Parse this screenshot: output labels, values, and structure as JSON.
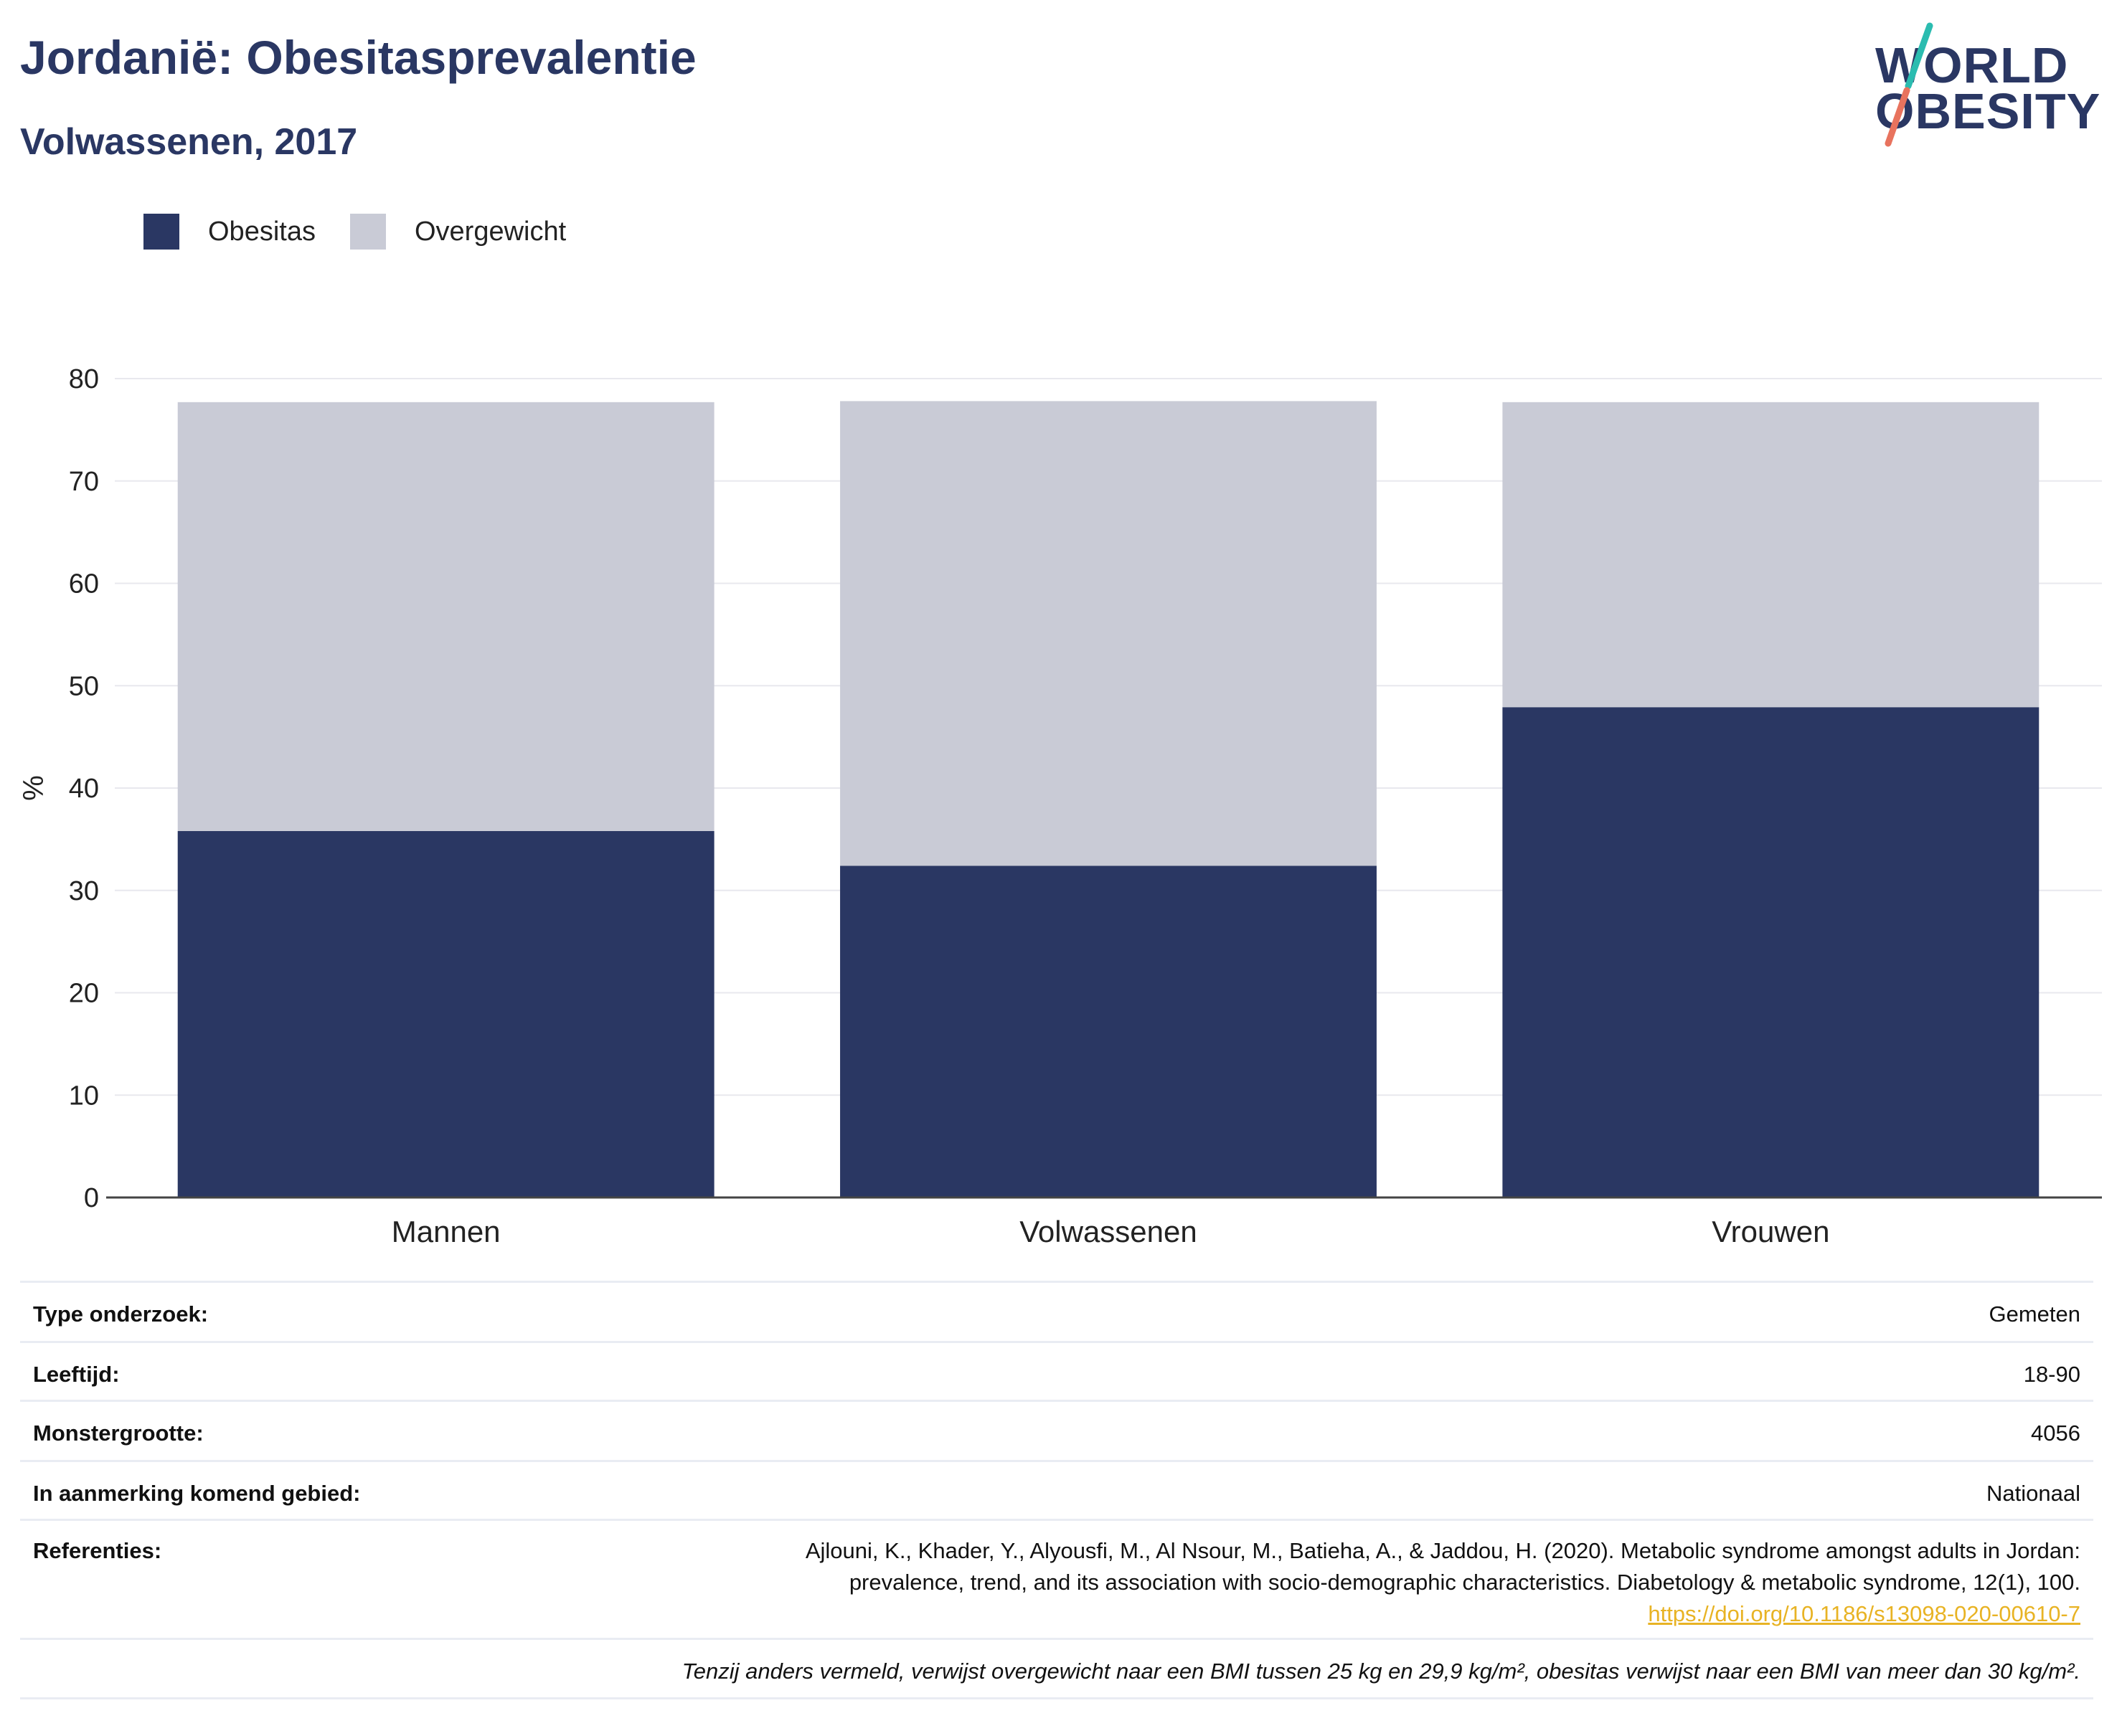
{
  "header": {
    "title": "Jordanië: Obesitasprevalentie",
    "subtitle": "Volwassenen, 2017"
  },
  "logo": {
    "line1": "WORLD",
    "line2": "OBESITY"
  },
  "legend": [
    {
      "label": "Obesitas",
      "color": "#2a3763"
    },
    {
      "label": "Overgewicht",
      "color": "#c9cbd6"
    }
  ],
  "chart_data": {
    "type": "bar",
    "stacked": true,
    "categories": [
      "Mannen",
      "Volwassenen",
      "Vrouwen"
    ],
    "series": [
      {
        "name": "Obesitas",
        "values": [
          35.8,
          32.4,
          47.9
        ],
        "color": "#2a3763"
      },
      {
        "name": "Overgewicht",
        "values": [
          41.9,
          45.4,
          29.8
        ],
        "color": "#c9cbd6"
      }
    ],
    "title": "",
    "xlabel": "",
    "ylabel": "%",
    "ylim": [
      0,
      80
    ],
    "yticks": [
      0,
      10,
      20,
      30,
      40,
      50,
      60,
      70,
      80
    ],
    "grid": true,
    "legend_position": "top-left"
  },
  "info": {
    "survey_type": {
      "label": "Type onderzoek:",
      "value": "Gemeten"
    },
    "age": {
      "label": "Leeftijd:",
      "value": "18-90"
    },
    "sample_size": {
      "label": "Monstergrootte:",
      "value": "4056"
    },
    "area": {
      "label": "In aanmerking komend gebied:",
      "value": "Nationaal"
    },
    "references": {
      "label": "Referenties:",
      "line1": "Ajlouni, K., Khader, Y., Alyousfi, M., Al Nsour, M., Batieha, A., & Jaddou, H. (2020). Metabolic syndrome amongst adults in Jordan:",
      "line2": "prevalence, trend, and its association with socio-demographic characteristics. Diabetology & metabolic syndrome, 12(1), 100.",
      "link": "https://doi.org/10.1186/s13098-020-00610-7"
    },
    "footnote": "Tenzij anders vermeld, verwijst overgewicht naar een BMI tussen 25 kg en 29,9 kg/m², obesitas verwijst naar een BMI van meer dan 30 kg/m²."
  }
}
